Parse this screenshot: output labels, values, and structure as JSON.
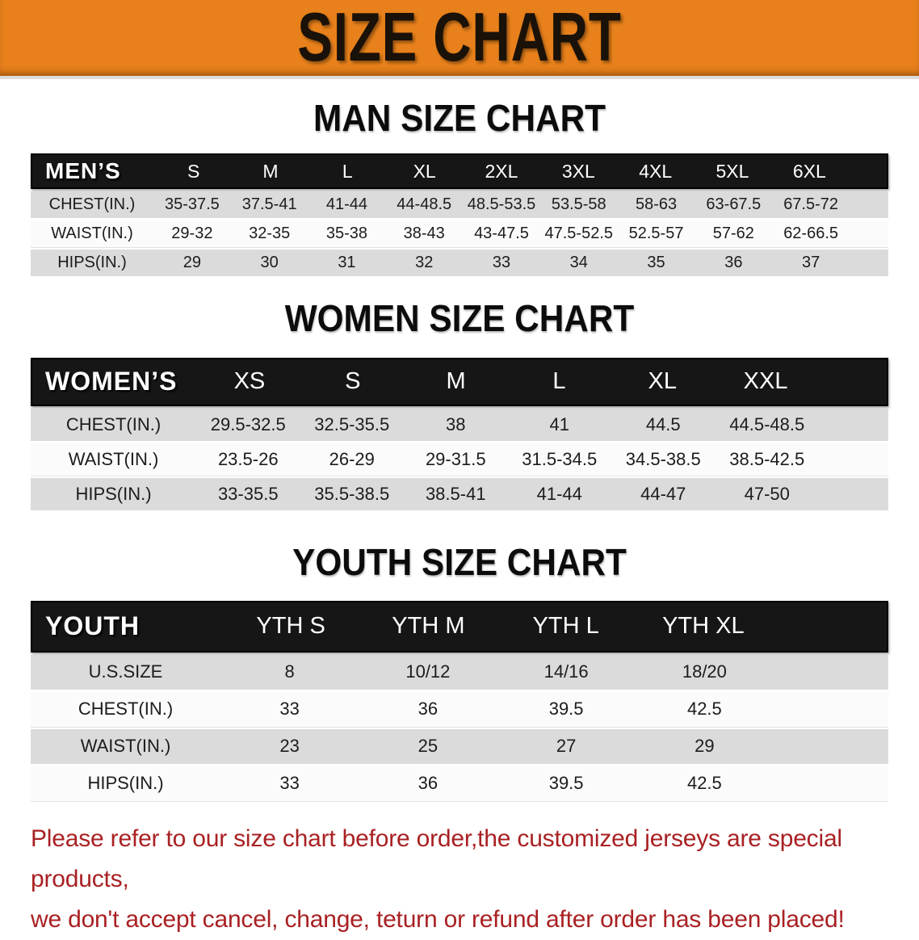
{
  "banner": {
    "title": "SIZE CHART"
  },
  "colors": {
    "banner_bg": "#E8811B",
    "header_bar_bg": "#161616",
    "row_gray": "#DBDBDB",
    "row_white": "#FBFBFB",
    "disclaimer_red": "#A92123"
  },
  "sections": [
    {
      "id": "men",
      "heading": "MAN SIZE CHART",
      "group_label": "MEN’S",
      "columns": [
        "S",
        "M",
        "L",
        "XL",
        "2XL",
        "3XL",
        "4XL",
        "5XL",
        "6XL"
      ],
      "rows": [
        {
          "label": "CHEST(IN.)",
          "values": [
            "35-37.5",
            "37.5-41",
            "41-44",
            "44-48.5",
            "48.5-53.5",
            "53.5-58",
            "58-63",
            "63-67.5",
            "67.5-72"
          ]
        },
        {
          "label": "WAIST(IN.)",
          "values": [
            "29-32",
            "32-35",
            "35-38",
            "38-43",
            "43-47.5",
            "47.5-52.5",
            "52.5-57",
            "57-62",
            "62-66.5"
          ]
        },
        {
          "label": "HIPS(IN.)",
          "values": [
            "29",
            "30",
            "31",
            "32",
            "33",
            "34",
            "35",
            "36",
            "37"
          ]
        }
      ]
    },
    {
      "id": "women",
      "heading": "WOMEN SIZE CHART",
      "group_label": "WOMEN’S",
      "columns": [
        "XS",
        "S",
        "M",
        "L",
        "XL",
        "XXL"
      ],
      "rows": [
        {
          "label": "CHEST(IN.)",
          "values": [
            "29.5-32.5",
            "32.5-35.5",
            "38",
            "41",
            "44.5",
            "44.5-48.5"
          ]
        },
        {
          "label": "WAIST(IN.)",
          "values": [
            "23.5-26",
            "26-29",
            "29-31.5",
            "31.5-34.5",
            "34.5-38.5",
            "38.5-42.5"
          ]
        },
        {
          "label": "HIPS(IN.)",
          "values": [
            "33-35.5",
            "35.5-38.5",
            "38.5-41",
            "41-44",
            "44-47",
            "47-50"
          ]
        }
      ]
    },
    {
      "id": "youth",
      "heading": "YOUTH SIZE CHART",
      "group_label": "YOUTH",
      "columns": [
        "YTH S",
        "YTH M",
        "YTH L",
        "YTH XL"
      ],
      "rows": [
        {
          "label": "U.S.SIZE",
          "values": [
            "8",
            "10/12",
            "14/16",
            "18/20"
          ]
        },
        {
          "label": "CHEST(IN.)",
          "values": [
            "33",
            "36",
            "39.5",
            "42.5"
          ]
        },
        {
          "label": "WAIST(IN.)",
          "values": [
            "23",
            "25",
            "27",
            "29"
          ]
        },
        {
          "label": "HIPS(IN.)",
          "values": [
            "33",
            "36",
            "39.5",
            "42.5"
          ]
        }
      ]
    }
  ],
  "disclaimer": {
    "line1": "Please refer to our size chart before order,the customized jerseys are special products,",
    "line2": "we don't accept cancel, change, teturn or refund after order has been placed!"
  }
}
